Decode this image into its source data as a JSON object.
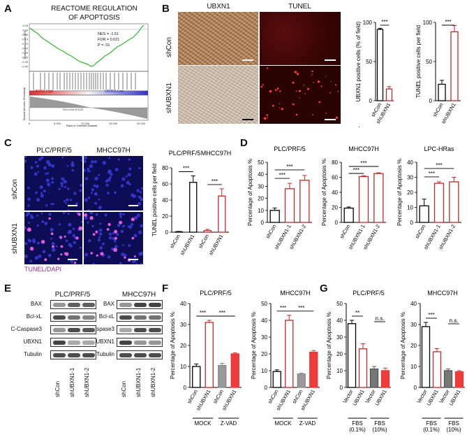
{
  "panels": {
    "A": {
      "letter": "A",
      "title": [
        "REACTOME REGULATION",
        "OF APOPTOSIS"
      ],
      "stats": [
        "NES = -1.51",
        "FDR = 0.021",
        "P = .01"
      ],
      "ylabel": "Enrichment score (ES)",
      "ylabel2": "Ranked list metric (Preranked)",
      "high_label": "UBXN1 High",
      "low_label": "UBXN1 Low",
      "xlabel": "Rank in Ordered Dataset",
      "zero_label": "Zero cross at 9125",
      "yticks": [
        "0.05",
        "0.00",
        "-0.05",
        "-0.10",
        "-0.15",
        "-0.20",
        "-0.25",
        "-0.30",
        "-0.35",
        "-0.40"
      ],
      "xticks": [
        "0",
        "5,000",
        "10,000",
        "15,000",
        "20,000"
      ]
    },
    "B": {
      "letter": "B",
      "col1": "UBXN1",
      "col2": "TUNEL",
      "rows": [
        "shCon",
        "shUBXN1"
      ],
      "dot": "·"
    },
    "C": {
      "letter": "C",
      "col1": "PLC/PRF/5",
      "col2": "MHCC97H",
      "rows": [
        "shCon",
        "shUBXN1"
      ],
      "stain": "TUNEL/DAPI"
    },
    "D": {
      "letter": "D"
    },
    "E": {
      "letter": "E",
      "title1": "PLC/PRF/5",
      "title2": "MHCC97H",
      "proteins": [
        "BAX",
        "Bcl-xL",
        "C-Caspase3",
        "UBXN1",
        "Tubulin"
      ],
      "lanes": [
        "shCon",
        "shUBXN1-1",
        "shUBXN1-2"
      ]
    },
    "F": {
      "letter": "F",
      "groups": [
        "MOCK",
        "Z-VAD"
      ]
    },
    "G": {
      "letter": "G",
      "groups": [
        "FBS\n(0.1%)",
        "FBS\n(10%)"
      ]
    }
  },
  "chart_data": [
    {
      "id": "B1",
      "type": "bar",
      "categories": [
        "shCon",
        "shUBXN1"
      ],
      "values": [
        91,
        15
      ],
      "errors": [
        1.5,
        3
      ],
      "ylabel": "UBXN1 positive cells (% of field)",
      "ylim": [
        0,
        100
      ],
      "yticks": [
        0,
        50,
        100
      ],
      "colors": [
        "#000000",
        "#c62828"
      ],
      "sig": [
        "***"
      ]
    },
    {
      "id": "B2",
      "type": "bar",
      "categories": [
        "shCon",
        "shUBXN1"
      ],
      "values": [
        21,
        88
      ],
      "errors": [
        5,
        8
      ],
      "ylabel": "TUNEL positive cells per field",
      "ylim": [
        0,
        100
      ],
      "yticks": [
        0,
        50,
        100
      ],
      "colors": [
        "#000000",
        "#c62828"
      ],
      "sig": [
        "***"
      ]
    },
    {
      "id": "C1",
      "type": "bar",
      "title": "PLC/PRF/5   MHCC97H",
      "categories": [
        "shCon",
        "shUBXN1",
        "shCon",
        "shUBXN1"
      ],
      "values": [
        0.5,
        62,
        2,
        45
      ],
      "errors": [
        0.5,
        8,
        1.5,
        9
      ],
      "ylabel": "TUNEL positive cells per field",
      "ylim": [
        0,
        80
      ],
      "yticks": [
        0,
        20,
        40,
        60,
        80
      ],
      "colors": [
        "#000000",
        "#000000",
        "#c62828",
        "#c62828"
      ],
      "sig": [
        "***",
        "***"
      ]
    },
    {
      "id": "D1",
      "type": "bar",
      "title": "PLC/PRF/5",
      "categories": [
        "shCon",
        "shUBXN1-1",
        "shUBXN1-2"
      ],
      "values": [
        10,
        28,
        35
      ],
      "errors": [
        2,
        4.5,
        4
      ],
      "ylabel": "Percentage of Apoptosis %",
      "ylim": [
        0,
        50
      ],
      "yticks": [
        0,
        10,
        20,
        30,
        40,
        50
      ],
      "colors": [
        "#000000",
        "#c62828",
        "#c62828"
      ],
      "sig": [
        "***",
        "***"
      ]
    },
    {
      "id": "D2",
      "type": "bar",
      "title": "MHCC97H",
      "categories": [
        "shCon",
        "shUBXN1-1",
        "shUBXN1-2"
      ],
      "values": [
        19,
        61,
        65
      ],
      "errors": [
        1.5,
        1,
        1
      ],
      "ylabel": "Percentage of Apoptosis %",
      "ylim": [
        0,
        80
      ],
      "yticks": [
        0,
        20,
        40,
        60,
        80
      ],
      "colors": [
        "#000000",
        "#c62828",
        "#c62828"
      ],
      "sig": [
        "***",
        "***"
      ]
    },
    {
      "id": "D3",
      "type": "bar",
      "title": "LPC-HRas",
      "categories": [
        "shCon",
        "shUBXN1-1",
        "shUBXN1-2"
      ],
      "values": [
        11,
        26,
        27
      ],
      "errors": [
        4.5,
        1,
        3
      ],
      "ylabel": "Percentage of Apoptosis %",
      "ylim": [
        0,
        40
      ],
      "yticks": [
        0,
        10,
        20,
        30,
        40
      ],
      "colors": [
        "#000000",
        "#c62828",
        "#c62828"
      ],
      "sig": [
        "***",
        "***"
      ]
    },
    {
      "id": "F1",
      "type": "bar",
      "title": "PLC/PRF/5",
      "categories": [
        "shCon",
        "shUBXN1",
        "shCon",
        "shUBXN1"
      ],
      "values": [
        10,
        31,
        10.5,
        16
      ],
      "errors": [
        1.2,
        1,
        1,
        0.5
      ],
      "ylabel": "Percentage of Apoptosis %",
      "ylim": [
        0,
        40
      ],
      "yticks": [
        0,
        10,
        20,
        30,
        40
      ],
      "colors": [
        "#000000",
        "#c62828",
        "#888888",
        "#e53935"
      ],
      "fills": [
        "#ffffff",
        "#ffffff",
        "#999999",
        "#ef3b3b"
      ],
      "sig": [
        "***",
        "***"
      ]
    },
    {
      "id": "F2",
      "type": "bar",
      "title": "MHCC97H",
      "categories": [
        "shCon",
        "shUBXN1",
        "shCon",
        "shUBXN1"
      ],
      "values": [
        9.5,
        40,
        8,
        21
      ],
      "errors": [
        1,
        3,
        0.5,
        1
      ],
      "ylabel": "Percentage of Apoptosis %",
      "ylim": [
        0,
        50
      ],
      "yticks": [
        0,
        10,
        20,
        30,
        40,
        50
      ],
      "colors": [
        "#000000",
        "#c62828",
        "#888888",
        "#e53935"
      ],
      "fills": [
        "#ffffff",
        "#ffffff",
        "#999999",
        "#ef3b3b"
      ],
      "sig": [
        "***",
        "***"
      ]
    },
    {
      "id": "G1",
      "type": "bar",
      "title": "PLC/PRF/5",
      "categories": [
        "Vector",
        "UBXN1",
        "Vector",
        "UBXN1"
      ],
      "values": [
        38,
        23,
        11,
        10
      ],
      "errors": [
        2,
        3,
        1.5,
        1.5
      ],
      "ylabel": "Percentage of Apoptosis %",
      "ylim": [
        0,
        50
      ],
      "yticks": [
        0,
        10,
        20,
        30,
        40,
        50
      ],
      "colors": [
        "#000000",
        "#c62828",
        "#555555",
        "#e53935"
      ],
      "fills": [
        "#ffffff",
        "#ffffff",
        "#777777",
        "#ef3b3b"
      ],
      "sig": [
        "**",
        "n.s."
      ]
    },
    {
      "id": "G2",
      "type": "bar",
      "title": "MHCC97H",
      "categories": [
        "Vector",
        "UBXN1",
        "Vector",
        "UBXN1"
      ],
      "values": [
        29,
        17,
        8,
        7.5
      ],
      "errors": [
        2,
        1.5,
        0.8,
        0.5
      ],
      "ylabel": "Percentage of Apoptosis %",
      "ylim": [
        0,
        40
      ],
      "yticks": [
        0,
        10,
        20,
        30,
        40
      ],
      "colors": [
        "#000000",
        "#c62828",
        "#555555",
        "#e53935"
      ],
      "fills": [
        "#ffffff",
        "#ffffff",
        "#777777",
        "#ef3b3b"
      ],
      "sig": [
        "***",
        "n.s."
      ]
    }
  ]
}
